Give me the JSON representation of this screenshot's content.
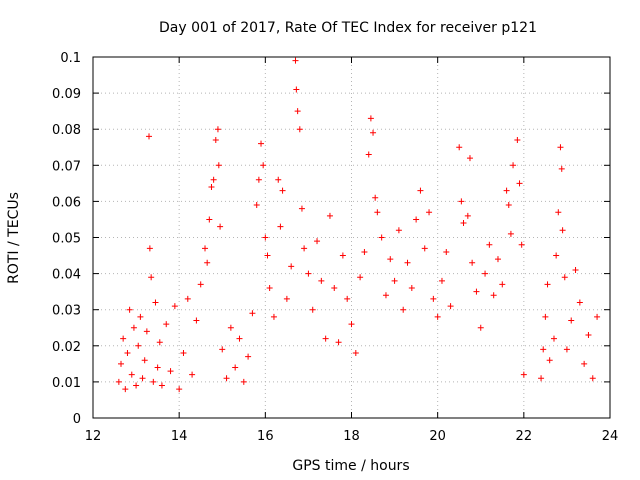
{
  "chart_data": {
    "type": "scatter",
    "title": "Day 001 of 2017, Rate Of TEC Index for receiver p121",
    "xlabel": "GPS time / hours",
    "ylabel": "ROTI / TECUs",
    "xlim": [
      12,
      24
    ],
    "ylim": [
      0,
      0.1
    ],
    "x_ticks": [
      "12",
      "14",
      "16",
      "18",
      "20",
      "22",
      "24"
    ],
    "y_ticks": [
      "0",
      "0.01",
      "0.02",
      "0.03",
      "0.04",
      "0.05",
      "0.06",
      "0.07",
      "0.08",
      "0.09",
      "0.1"
    ],
    "grid": true,
    "marker": "+",
    "series": [
      {
        "color": "#ff0000",
        "points": [
          [
            12.6,
            0.01
          ],
          [
            12.65,
            0.015
          ],
          [
            12.7,
            0.022
          ],
          [
            12.75,
            0.008
          ],
          [
            12.8,
            0.018
          ],
          [
            12.85,
            0.03
          ],
          [
            12.9,
            0.012
          ],
          [
            12.95,
            0.025
          ],
          [
            13.0,
            0.009
          ],
          [
            13.05,
            0.02
          ],
          [
            13.1,
            0.028
          ],
          [
            13.15,
            0.011
          ],
          [
            13.2,
            0.016
          ],
          [
            13.25,
            0.024
          ],
          [
            13.3,
            0.078
          ],
          [
            13.32,
            0.047
          ],
          [
            13.35,
            0.039
          ],
          [
            13.4,
            0.01
          ],
          [
            13.45,
            0.032
          ],
          [
            13.5,
            0.014
          ],
          [
            13.55,
            0.021
          ],
          [
            13.6,
            0.009
          ],
          [
            13.7,
            0.026
          ],
          [
            13.8,
            0.013
          ],
          [
            13.9,
            0.031
          ],
          [
            14.0,
            0.008
          ],
          [
            14.1,
            0.018
          ],
          [
            14.2,
            0.033
          ],
          [
            14.3,
            0.012
          ],
          [
            14.4,
            0.027
          ],
          [
            14.5,
            0.037
          ],
          [
            14.6,
            0.047
          ],
          [
            14.65,
            0.043
          ],
          [
            14.7,
            0.055
          ],
          [
            14.75,
            0.064
          ],
          [
            14.8,
            0.066
          ],
          [
            14.85,
            0.077
          ],
          [
            14.9,
            0.08
          ],
          [
            14.92,
            0.07
          ],
          [
            14.95,
            0.053
          ],
          [
            15.0,
            0.019
          ],
          [
            15.1,
            0.011
          ],
          [
            15.2,
            0.025
          ],
          [
            15.3,
            0.014
          ],
          [
            15.4,
            0.022
          ],
          [
            15.5,
            0.01
          ],
          [
            15.6,
            0.017
          ],
          [
            15.7,
            0.029
          ],
          [
            15.8,
            0.059
          ],
          [
            15.85,
            0.066
          ],
          [
            15.9,
            0.076
          ],
          [
            15.95,
            0.07
          ],
          [
            16.0,
            0.05
          ],
          [
            16.05,
            0.045
          ],
          [
            16.1,
            0.036
          ],
          [
            16.2,
            0.028
          ],
          [
            16.3,
            0.066
          ],
          [
            16.35,
            0.053
          ],
          [
            16.4,
            0.063
          ],
          [
            16.5,
            0.033
          ],
          [
            16.6,
            0.042
          ],
          [
            16.7,
            0.099
          ],
          [
            16.72,
            0.091
          ],
          [
            16.75,
            0.085
          ],
          [
            16.8,
            0.08
          ],
          [
            16.85,
            0.058
          ],
          [
            16.9,
            0.047
          ],
          [
            17.0,
            0.04
          ],
          [
            17.1,
            0.03
          ],
          [
            17.2,
            0.049
          ],
          [
            17.3,
            0.038
          ],
          [
            17.4,
            0.022
          ],
          [
            17.5,
            0.056
          ],
          [
            17.6,
            0.036
          ],
          [
            17.7,
            0.021
          ],
          [
            17.8,
            0.045
          ],
          [
            17.9,
            0.033
          ],
          [
            18.0,
            0.026
          ],
          [
            18.1,
            0.018
          ],
          [
            18.2,
            0.039
          ],
          [
            18.3,
            0.046
          ],
          [
            18.4,
            0.073
          ],
          [
            18.45,
            0.083
          ],
          [
            18.5,
            0.079
          ],
          [
            18.55,
            0.061
          ],
          [
            18.6,
            0.057
          ],
          [
            18.7,
            0.05
          ],
          [
            18.8,
            0.034
          ],
          [
            18.9,
            0.044
          ],
          [
            19.0,
            0.038
          ],
          [
            19.1,
            0.052
          ],
          [
            19.2,
            0.03
          ],
          [
            19.3,
            0.043
          ],
          [
            19.4,
            0.036
          ],
          [
            19.5,
            0.055
          ],
          [
            19.6,
            0.063
          ],
          [
            19.7,
            0.047
          ],
          [
            19.8,
            0.057
          ],
          [
            19.9,
            0.033
          ],
          [
            20.0,
            0.028
          ],
          [
            20.1,
            0.038
          ],
          [
            20.2,
            0.046
          ],
          [
            20.3,
            0.031
          ],
          [
            20.5,
            0.075
          ],
          [
            20.55,
            0.06
          ],
          [
            20.6,
            0.054
          ],
          [
            20.7,
            0.056
          ],
          [
            20.75,
            0.072
          ],
          [
            20.8,
            0.043
          ],
          [
            20.9,
            0.035
          ],
          [
            21.0,
            0.025
          ],
          [
            21.1,
            0.04
          ],
          [
            21.2,
            0.048
          ],
          [
            21.3,
            0.034
          ],
          [
            21.4,
            0.044
          ],
          [
            21.5,
            0.037
          ],
          [
            21.6,
            0.063
          ],
          [
            21.65,
            0.059
          ],
          [
            21.7,
            0.051
          ],
          [
            21.75,
            0.07
          ],
          [
            21.85,
            0.077
          ],
          [
            21.9,
            0.065
          ],
          [
            21.95,
            0.048
          ],
          [
            22.0,
            0.012
          ],
          [
            22.4,
            0.011
          ],
          [
            22.45,
            0.019
          ],
          [
            22.5,
            0.028
          ],
          [
            22.55,
            0.037
          ],
          [
            22.6,
            0.016
          ],
          [
            22.7,
            0.022
          ],
          [
            22.75,
            0.045
          ],
          [
            22.8,
            0.057
          ],
          [
            22.85,
            0.075
          ],
          [
            22.88,
            0.069
          ],
          [
            22.9,
            0.052
          ],
          [
            22.95,
            0.039
          ],
          [
            23.0,
            0.019
          ],
          [
            23.1,
            0.027
          ],
          [
            23.2,
            0.041
          ],
          [
            23.3,
            0.032
          ],
          [
            23.4,
            0.015
          ],
          [
            23.5,
            0.023
          ],
          [
            23.6,
            0.011
          ],
          [
            23.7,
            0.028
          ]
        ]
      }
    ]
  }
}
